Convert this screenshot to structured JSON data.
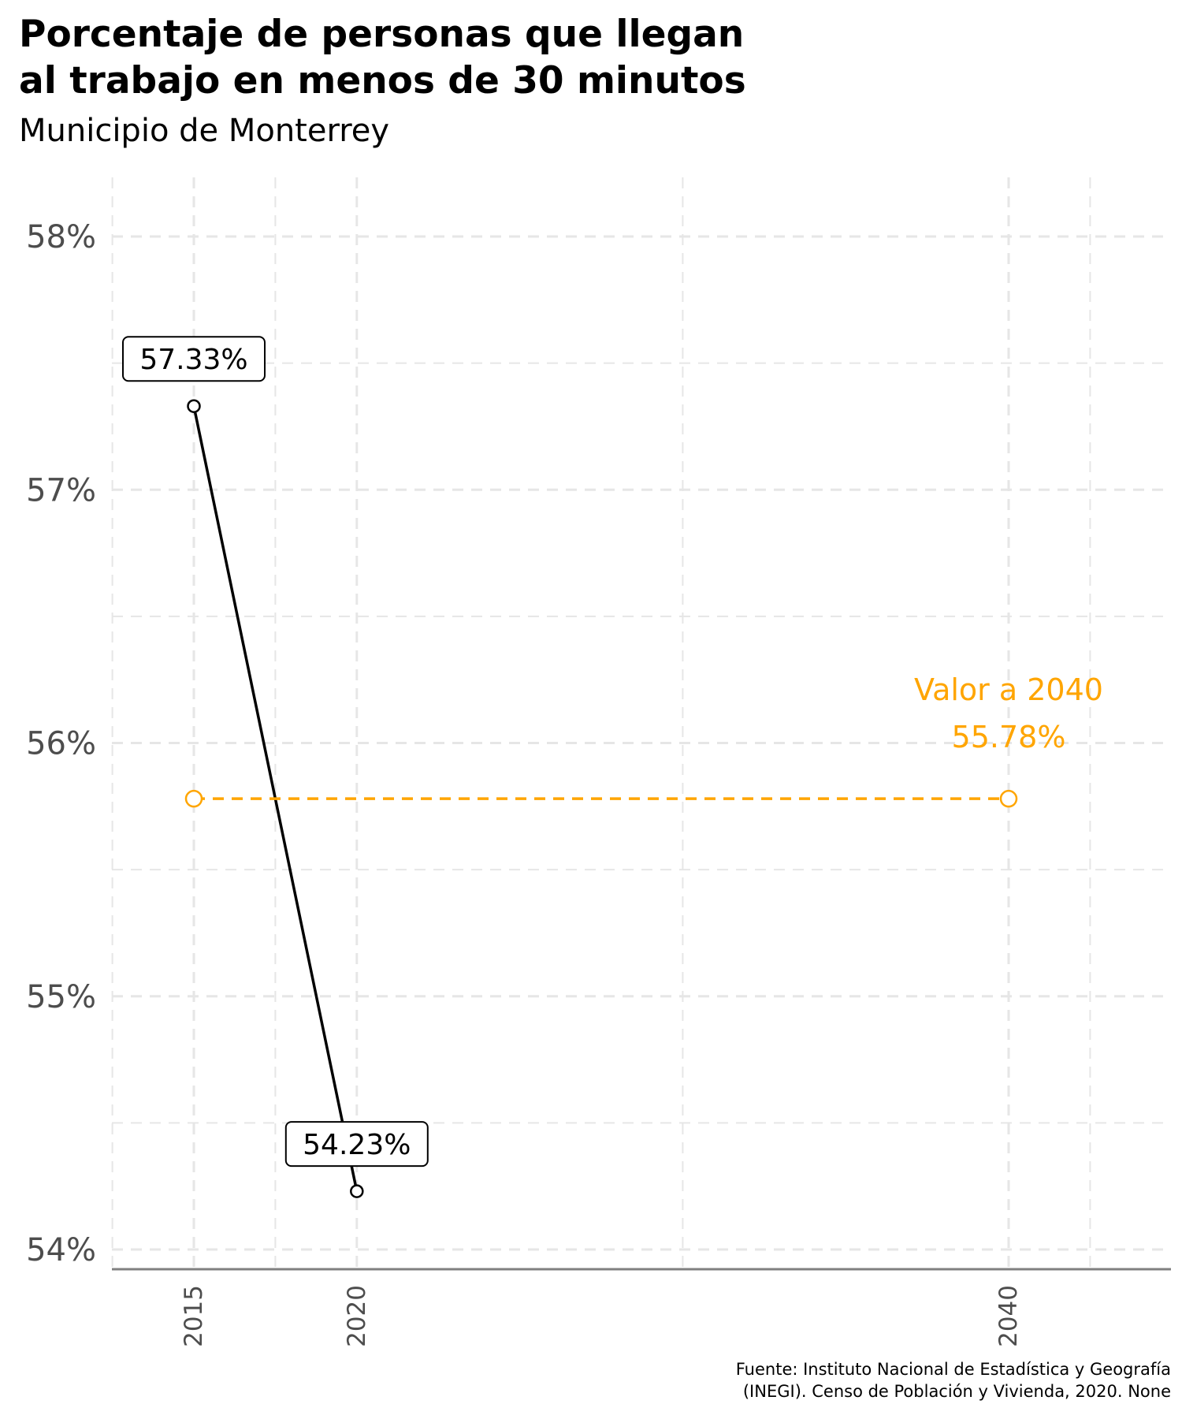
{
  "chart_data": {
    "type": "line",
    "title": "Porcentaje de personas que llegan al trabajo en menos de 30 minutos",
    "title_lines": [
      "Porcentaje de personas que llegan",
      "al trabajo en menos de 30 minutos"
    ],
    "subtitle": "Municipio de Monterrey",
    "caption_lines": [
      "Fuente: Instituto Nacional de Estadística y Geografía",
      "(INEGI). Censo de Población y Vivienda, 2020. None"
    ],
    "xlabel": "",
    "ylabel": "",
    "xlim": [
      2015,
      2040
    ],
    "x_ticks": [
      2015,
      2020,
      2040
    ],
    "x_tick_labels": [
      "2015",
      "2020",
      "2040"
    ],
    "ylim": [
      54,
      58
    ],
    "y_ticks": [
      54,
      55,
      56,
      57,
      58
    ],
    "y_tick_labels": [
      "54%",
      "55%",
      "56%",
      "57%",
      "58%"
    ],
    "grid": true,
    "series": [
      {
        "x": [
          2015,
          2020
        ],
        "values": [
          57.33,
          54.23
        ],
        "labels": [
          "57.33%",
          "54.23%"
        ],
        "color": "#000000",
        "line_style": "solid"
      },
      {
        "x": [
          2015,
          2040
        ],
        "values": [
          55.78,
          55.78
        ],
        "color": "#FFA500",
        "line_style": "dashed"
      }
    ],
    "annotations": [
      {
        "x": 2040,
        "y": 55.78,
        "lines": [
          "Valor a 2040",
          "55.78%"
        ],
        "color": "#FFA500"
      }
    ]
  }
}
